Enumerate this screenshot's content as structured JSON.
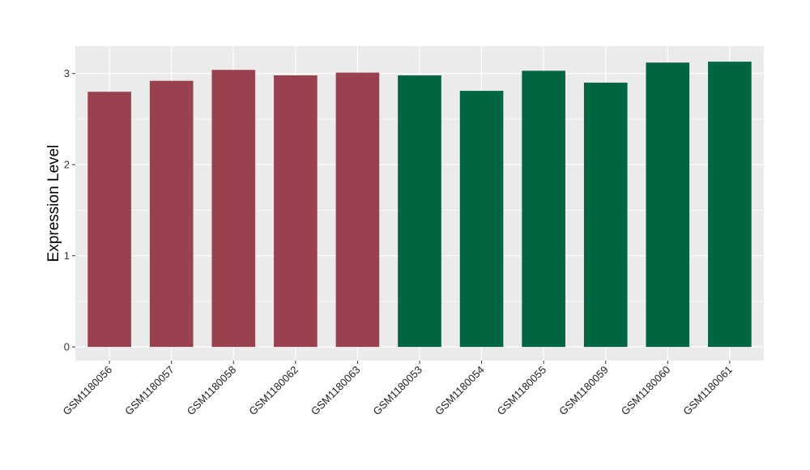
{
  "chart_data": {
    "type": "bar",
    "title": "",
    "xlabel": "",
    "ylabel": "Expression Level",
    "ylim": [
      -0.15,
      3.3
    ],
    "yticks": [
      0,
      1,
      2,
      3
    ],
    "grid": true,
    "legend": "none",
    "categories": [
      "GSM1180056",
      "GSM1180057",
      "GSM1180058",
      "GSM1180062",
      "GSM1180063",
      "GSM1180053",
      "GSM1180054",
      "GSM1180055",
      "GSM1180059",
      "GSM1180060",
      "GSM1180061"
    ],
    "values": [
      2.8,
      2.92,
      3.04,
      2.98,
      3.01,
      2.98,
      2.81,
      3.03,
      2.9,
      3.12,
      3.13
    ],
    "bar_colors": [
      "#99414f",
      "#99414f",
      "#99414f",
      "#99414f",
      "#99414f",
      "#006641",
      "#006641",
      "#006641",
      "#006641",
      "#006641",
      "#006641"
    ],
    "colors": {
      "panel_background": "#ebebeb",
      "grid": "#ffffff",
      "group_a": "#99414f",
      "group_b": "#006641"
    }
  }
}
